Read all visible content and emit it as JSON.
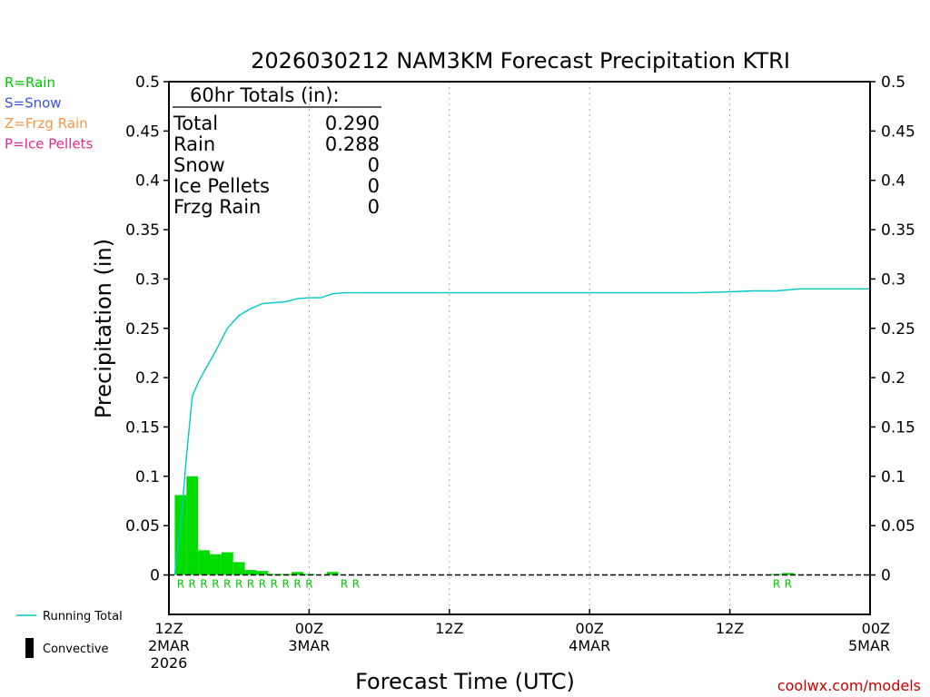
{
  "chart_data": {
    "type": "bar",
    "title": "2026030212 NAM3KM Forecast Precipitation KTRI",
    "xlabel": "Forecast Time (UTC)",
    "ylabel": "Precipitation (in)",
    "ylim": [
      -0.04,
      0.5
    ],
    "xlim_hours": [
      0,
      60
    ],
    "y_ticks": [
      "0",
      "0.05",
      "0.1",
      "0.15",
      "0.2",
      "0.25",
      "0.3",
      "0.35",
      "0.4",
      "0.45",
      "0.5"
    ],
    "y_tick_values": [
      0,
      0.05,
      0.1,
      0.15,
      0.2,
      0.25,
      0.3,
      0.35,
      0.4,
      0.45,
      0.5
    ],
    "x_ticks": [
      {
        "hour": 0,
        "lines": [
          "12Z",
          "2MAR",
          "2026"
        ]
      },
      {
        "hour": 12,
        "lines": [
          "00Z",
          "3MAR"
        ]
      },
      {
        "hour": 24,
        "lines": [
          "12Z"
        ]
      },
      {
        "hour": 36,
        "lines": [
          "00Z",
          "4MAR"
        ]
      },
      {
        "hour": 48,
        "lines": [
          "12Z"
        ]
      },
      {
        "hour": 60,
        "lines": [
          "00Z",
          "5MAR"
        ]
      }
    ],
    "hourly_precip": {
      "hours": [
        1,
        2,
        3,
        4,
        5,
        6,
        7,
        8,
        9,
        10,
        11,
        12,
        13,
        14,
        15,
        16,
        52,
        53
      ],
      "values": [
        0.081,
        0.1,
        0.025,
        0.021,
        0.023,
        0.013,
        0.005,
        0.004,
        0.001,
        0.001,
        0.003,
        0.001,
        0.0,
        0.003,
        0.0,
        0.0,
        0.001,
        0.002
      ],
      "color": "#00dc00"
    },
    "rain_markers": {
      "hours": [
        1,
        2,
        3,
        4,
        5,
        6,
        7,
        8,
        9,
        10,
        11,
        12,
        15,
        16,
        52,
        53
      ],
      "label": "R",
      "color": "#00c800"
    },
    "running_total": {
      "name": "Running Total",
      "color": "#00c8c8",
      "x": [
        0.5,
        1,
        1.5,
        2,
        2.5,
        3,
        4,
        5,
        6,
        7,
        8,
        9,
        10,
        11,
        12,
        13,
        14,
        15,
        16,
        20,
        30,
        40,
        45,
        48,
        50,
        52,
        54,
        60
      ],
      "y": [
        0.0,
        0.05,
        0.12,
        0.181,
        0.195,
        0.206,
        0.227,
        0.25,
        0.263,
        0.27,
        0.275,
        0.276,
        0.277,
        0.28,
        0.281,
        0.281,
        0.285,
        0.286,
        0.286,
        0.286,
        0.286,
        0.286,
        0.286,
        0.287,
        0.288,
        0.288,
        0.29,
        0.29
      ]
    },
    "totals_box": {
      "heading": "60hr Totals (in):",
      "rows": [
        {
          "label": "Total",
          "value": "0.290"
        },
        {
          "label": "Rain",
          "value": "0.288"
        },
        {
          "label": "Snow",
          "value": "0"
        },
        {
          "label": "Ice Pellets",
          "value": "0"
        },
        {
          "label": "Frzg Rain",
          "value": "0"
        }
      ]
    },
    "type_legend": [
      {
        "text": "R=Rain",
        "color": "#00c800"
      },
      {
        "text": "S=Snow",
        "color": "#3c50e6"
      },
      {
        "text": "Z=Frzg Rain",
        "color": "#f09646"
      },
      {
        "text": "P=Ice Pellets",
        "color": "#e6288c"
      }
    ],
    "bottom_legend": [
      {
        "text": "Running Total",
        "kind": "line",
        "color": "#00c8c8"
      },
      {
        "text": "Convective",
        "kind": "bar",
        "color": "#000000"
      }
    ],
    "credit": {
      "text": "coolwx.com/models",
      "color": "#c80000"
    }
  }
}
